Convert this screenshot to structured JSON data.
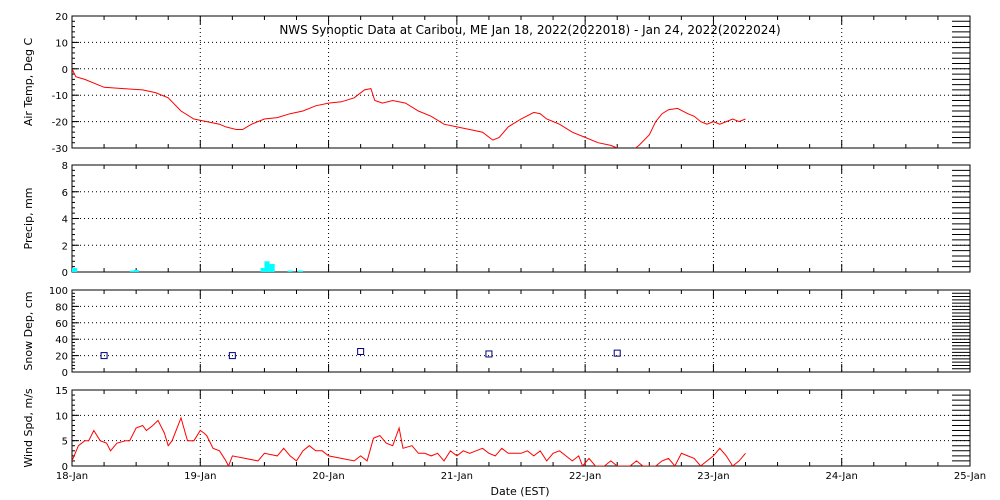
{
  "title": "NWS Synoptic Data at Caribou, ME   Jan 18, 2022(2022018) - Jan 24, 2022(2022024)",
  "xlabel": "Date (EST)",
  "colors": {
    "background": "#ffffff",
    "axes": "#000000",
    "grid": "#000000",
    "air_temp": "#ff0000",
    "precip": "#00ffff",
    "snow_depth": "#000080",
    "wind_speed": "#ff0000"
  },
  "chart_data": [
    {
      "type": "line",
      "panel": "air_temp",
      "ylabel": "Air Temp, Deg C",
      "ylim": [
        -30,
        20
      ],
      "yticks": [
        20,
        10,
        0,
        -10,
        -20,
        -30
      ],
      "grid": true,
      "x_unit": "days since Jan 18 00:00 EST",
      "series": [
        {
          "values": [
            [
              0.0,
              0
            ],
            [
              0.03,
              -3
            ],
            [
              0.1,
              -4
            ],
            [
              0.25,
              -7
            ],
            [
              0.4,
              -7.5
            ],
            [
              0.55,
              -8
            ],
            [
              0.65,
              -9
            ],
            [
              0.75,
              -11
            ],
            [
              0.85,
              -16
            ],
            [
              0.95,
              -19
            ],
            [
              1.05,
              -20
            ],
            [
              1.15,
              -21
            ],
            [
              1.2,
              -22
            ],
            [
              1.28,
              -23
            ],
            [
              1.33,
              -23
            ],
            [
              1.4,
              -21
            ],
            [
              1.5,
              -19
            ],
            [
              1.6,
              -18.5
            ],
            [
              1.7,
              -17
            ],
            [
              1.8,
              -16
            ],
            [
              1.9,
              -14
            ],
            [
              2.0,
              -13
            ],
            [
              2.1,
              -12.5
            ],
            [
              2.2,
              -11
            ],
            [
              2.28,
              -8
            ],
            [
              2.33,
              -7.5
            ],
            [
              2.36,
              -12
            ],
            [
              2.42,
              -13
            ],
            [
              2.5,
              -12
            ],
            [
              2.6,
              -13
            ],
            [
              2.7,
              -16
            ],
            [
              2.8,
              -18
            ],
            [
              2.9,
              -21
            ],
            [
              3.0,
              -22
            ],
            [
              3.1,
              -23
            ],
            [
              3.2,
              -24
            ],
            [
              3.28,
              -27
            ],
            [
              3.33,
              -26
            ],
            [
              3.4,
              -22
            ],
            [
              3.5,
              -19
            ],
            [
              3.6,
              -16.5
            ],
            [
              3.65,
              -17
            ],
            [
              3.7,
              -19
            ],
            [
              3.8,
              -21
            ],
            [
              3.9,
              -24
            ],
            [
              4.0,
              -26
            ],
            [
              4.1,
              -28
            ],
            [
              4.2,
              -29
            ],
            [
              4.3,
              -31
            ],
            [
              4.35,
              -31.5
            ],
            [
              4.42,
              -29
            ],
            [
              4.5,
              -25
            ],
            [
              4.55,
              -20
            ],
            [
              4.6,
              -17
            ],
            [
              4.65,
              -15.5
            ],
            [
              4.72,
              -15
            ],
            [
              4.8,
              -17
            ],
            [
              4.85,
              -18
            ],
            [
              4.9,
              -20
            ],
            [
              4.95,
              -21
            ],
            [
              5.0,
              -20
            ],
            [
              5.05,
              -21
            ],
            [
              5.1,
              -20
            ],
            [
              5.15,
              -19
            ],
            [
              5.2,
              -20
            ],
            [
              5.25,
              -19
            ]
          ]
        }
      ]
    },
    {
      "type": "bar",
      "panel": "precip",
      "ylabel": "Precip, mm",
      "ylim": [
        0,
        8
      ],
      "yticks": [
        8,
        6,
        4,
        2,
        0
      ],
      "grid": true,
      "x_unit": "days since Jan 18 00:00 EST",
      "bar_width_days": 0.04,
      "values": [
        [
          0.0,
          0.3
        ],
        [
          0.45,
          0.1
        ],
        [
          0.48,
          0.15
        ],
        [
          1.47,
          0.3
        ],
        [
          1.5,
          0.8
        ],
        [
          1.54,
          0.6
        ],
        [
          1.68,
          0.1
        ],
        [
          1.76,
          0.1
        ]
      ]
    },
    {
      "type": "scatter",
      "panel": "snow_depth",
      "ylabel": "Snow Dep, cm",
      "ylim": [
        0,
        100
      ],
      "yticks": [
        100,
        80,
        60,
        40,
        20,
        0
      ],
      "grid": true,
      "x_unit": "days since Jan 18 00:00 EST",
      "values": [
        [
          0.25,
          20
        ],
        [
          1.25,
          20
        ],
        [
          2.25,
          25
        ],
        [
          3.25,
          22
        ],
        [
          4.25,
          23
        ]
      ]
    },
    {
      "type": "line",
      "panel": "wind_speed",
      "ylabel": "Wind Spd, m/s",
      "ylim": [
        0,
        15
      ],
      "yticks": [
        15,
        10,
        5,
        0
      ],
      "grid": true,
      "x_unit": "days since Jan 18 00:00 EST",
      "xticks": [
        "18-Jan",
        "19-Jan",
        "20-Jan",
        "21-Jan",
        "22-Jan",
        "23-Jan",
        "24-Jan",
        "25-Jan"
      ],
      "series": [
        {
          "values": [
            [
              0.0,
              1
            ],
            [
              0.05,
              4
            ],
            [
              0.1,
              5
            ],
            [
              0.13,
              5
            ],
            [
              0.17,
              7
            ],
            [
              0.22,
              5
            ],
            [
              0.27,
              4.5
            ],
            [
              0.3,
              3
            ],
            [
              0.35,
              4.5
            ],
            [
              0.42,
              5
            ],
            [
              0.45,
              5
            ],
            [
              0.5,
              7.5
            ],
            [
              0.55,
              8
            ],
            [
              0.58,
              7
            ],
            [
              0.63,
              8
            ],
            [
              0.67,
              9
            ],
            [
              0.72,
              6.5
            ],
            [
              0.75,
              4
            ],
            [
              0.78,
              5
            ],
            [
              0.85,
              9.5
            ],
            [
              0.9,
              5
            ],
            [
              0.95,
              5
            ],
            [
              1.0,
              7
            ],
            [
              1.03,
              6.5
            ],
            [
              1.05,
              6
            ],
            [
              1.1,
              3.5
            ],
            [
              1.15,
              3
            ],
            [
              1.2,
              1
            ],
            [
              1.22,
              0
            ],
            [
              1.25,
              2
            ],
            [
              1.35,
              1.5
            ],
            [
              1.45,
              1
            ],
            [
              1.5,
              2.5
            ],
            [
              1.6,
              2
            ],
            [
              1.65,
              3.5
            ],
            [
              1.7,
              2
            ],
            [
              1.75,
              1
            ],
            [
              1.8,
              3
            ],
            [
              1.85,
              4
            ],
            [
              1.9,
              3
            ],
            [
              1.95,
              3
            ],
            [
              2.0,
              2
            ],
            [
              2.1,
              1.5
            ],
            [
              2.2,
              1
            ],
            [
              2.25,
              2
            ],
            [
              2.3,
              1
            ],
            [
              2.35,
              5.5
            ],
            [
              2.4,
              6
            ],
            [
              2.45,
              4.5
            ],
            [
              2.5,
              4
            ],
            [
              2.55,
              7.5
            ],
            [
              2.58,
              3.5
            ],
            [
              2.65,
              4
            ],
            [
              2.7,
              2.5
            ],
            [
              2.75,
              2.5
            ],
            [
              2.8,
              2
            ],
            [
              2.85,
              2.5
            ],
            [
              2.9,
              1
            ],
            [
              2.95,
              3
            ],
            [
              3.0,
              2
            ],
            [
              3.05,
              3
            ],
            [
              3.1,
              2.5
            ],
            [
              3.15,
              3
            ],
            [
              3.2,
              3.5
            ],
            [
              3.25,
              2.5
            ],
            [
              3.3,
              2
            ],
            [
              3.35,
              3.5
            ],
            [
              3.4,
              2.5
            ],
            [
              3.45,
              2.5
            ],
            [
              3.5,
              2.5
            ],
            [
              3.55,
              3
            ],
            [
              3.6,
              2
            ],
            [
              3.65,
              3
            ],
            [
              3.7,
              1
            ],
            [
              3.75,
              2.5
            ],
            [
              3.8,
              3
            ],
            [
              3.85,
              2
            ],
            [
              3.9,
              1
            ],
            [
              3.95,
              2
            ],
            [
              3.98,
              0
            ],
            [
              4.03,
              1.5
            ],
            [
              4.08,
              0
            ],
            [
              4.15,
              0
            ],
            [
              4.2,
              1
            ],
            [
              4.25,
              0
            ],
            [
              4.3,
              0
            ],
            [
              4.35,
              0
            ],
            [
              4.4,
              1
            ],
            [
              4.45,
              0
            ],
            [
              4.5,
              0
            ],
            [
              4.55,
              0
            ],
            [
              4.6,
              1
            ],
            [
              4.65,
              1.5
            ],
            [
              4.7,
              0
            ],
            [
              4.75,
              2.5
            ],
            [
              4.8,
              2
            ],
            [
              4.85,
              1.5
            ],
            [
              4.9,
              0
            ],
            [
              4.95,
              1
            ],
            [
              5.0,
              2
            ],
            [
              5.05,
              3.5
            ],
            [
              5.1,
              2
            ],
            [
              5.15,
              0
            ],
            [
              5.2,
              1
            ],
            [
              5.25,
              2.5
            ]
          ]
        }
      ]
    }
  ]
}
